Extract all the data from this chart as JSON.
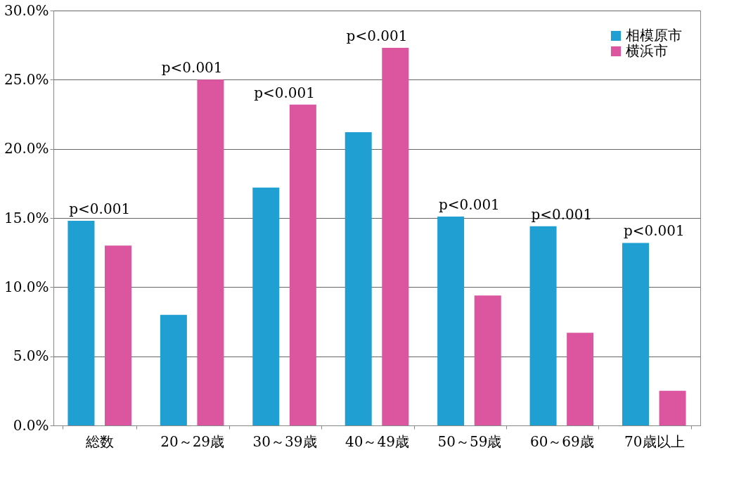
{
  "chart_data": {
    "type": "bar",
    "categories": [
      "総数",
      "20～29歳",
      "30～39歳",
      "40～49歳",
      "50～59歳",
      "60～69歳",
      "70歳以上"
    ],
    "series": [
      {
        "name": "相模原市",
        "color": "#1f9fd2",
        "values": [
          14.8,
          8.0,
          17.2,
          21.2,
          15.1,
          14.4,
          13.2
        ]
      },
      {
        "name": "横浜市",
        "color": "#db559f",
        "values": [
          13.0,
          25.0,
          23.2,
          27.3,
          9.4,
          6.7,
          2.5
        ]
      }
    ],
    "ylim": [
      0,
      30
    ],
    "yticks": [
      {
        "value": 0,
        "label": "0.0%"
      },
      {
        "value": 5,
        "label": "5.0%"
      },
      {
        "value": 10,
        "label": "10.0%"
      },
      {
        "value": 15,
        "label": "15.0%"
      },
      {
        "value": 20,
        "label": "20.0%"
      },
      {
        "value": 25,
        "label": "25.0%"
      },
      {
        "value": 30,
        "label": "30.0%"
      }
    ],
    "grid": "y",
    "legend": "top right",
    "annotations": [
      "p<0.001",
      "p<0.001",
      "p<0.001",
      "p<0.001",
      "p<0.001",
      "p<0.001",
      "p<0.001"
    ]
  }
}
